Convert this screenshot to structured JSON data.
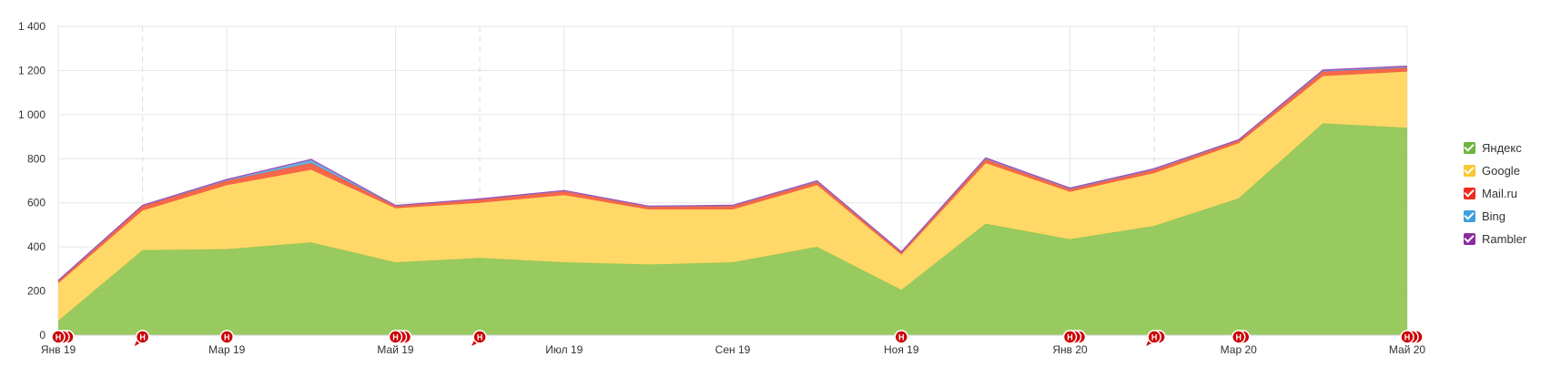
{
  "chart_data": {
    "type": "area",
    "stacked": true,
    "x": [
      "Янв 19",
      "Фев 19",
      "Мар 19",
      "Апр 19",
      "Май 19",
      "Июн 19",
      "Июл 19",
      "Авг 19",
      "Сен 19",
      "Окт 19",
      "Ноя 19",
      "Дек 19",
      "Янв 20",
      "Фев 20",
      "Мар 20",
      "Апр 20",
      "Май 20"
    ],
    "x_tick_labels": [
      "Янв 19",
      "Мар 19",
      "Май 19",
      "Июл 19",
      "Сен 19",
      "Ноя 19",
      "Янв 20",
      "Мар 20",
      "Май 20"
    ],
    "ylim": [
      0,
      1400
    ],
    "y_ticks": [
      0,
      200,
      400,
      600,
      800,
      1000,
      1200,
      1400
    ],
    "y_tick_labels": [
      "0",
      "200",
      "400",
      "600",
      "800",
      "1 000",
      "1 200",
      "1 400"
    ],
    "grid": true,
    "legend_position": "right",
    "series": [
      {
        "name": "Яндекс",
        "color": "#8fc653",
        "legend_color": "#6eb43f",
        "values": [
          65,
          385,
          390,
          420,
          330,
          350,
          330,
          320,
          330,
          400,
          205,
          505,
          435,
          495,
          620,
          960,
          940
        ]
      },
      {
        "name": "Google",
        "color": "#ffd660",
        "legend_color": "#f9c733",
        "values": [
          170,
          180,
          290,
          330,
          245,
          250,
          305,
          250,
          240,
          280,
          160,
          275,
          215,
          240,
          250,
          215,
          255
        ]
      },
      {
        "name": "Mail.ru",
        "color": "#f55a3c",
        "legend_color": "#ef2b1f",
        "values": [
          10,
          20,
          20,
          30,
          10,
          15,
          18,
          12,
          15,
          15,
          10,
          18,
          12,
          15,
          12,
          20,
          18
        ]
      },
      {
        "name": "Bing",
        "color": "#5fa9dc",
        "legend_color": "#3d9fdd",
        "values": [
          2,
          3,
          5,
          15,
          2,
          2,
          2,
          2,
          3,
          3,
          2,
          3,
          3,
          3,
          3,
          4,
          4
        ]
      },
      {
        "name": "Rambler",
        "color": "#a24fb5",
        "legend_color": "#8a2d9f",
        "values": [
          1,
          1,
          1,
          2,
          1,
          1,
          1,
          1,
          1,
          2,
          1,
          3,
          2,
          2,
          1,
          3,
          3
        ]
      }
    ],
    "annotations": [
      {
        "label": "Н",
        "x": "Янв 19",
        "stack": 3
      },
      {
        "label": "Н",
        "x": "Фев 19",
        "stack": 1,
        "pointer": true
      },
      {
        "label": "Н",
        "x": "Мар 19",
        "stack": 1
      },
      {
        "label": "Н",
        "x": "Май 19",
        "stack": 3
      },
      {
        "label": "Н",
        "x": "Июн 19",
        "stack": 1,
        "pointer": true
      },
      {
        "label": "Н",
        "x": "Ноя 19",
        "stack": 1
      },
      {
        "label": "Н",
        "x": "Янв 20",
        "stack": 3
      },
      {
        "label": "Н",
        "x": "Фев 20",
        "stack": 2,
        "pointer": true
      },
      {
        "label": "Н",
        "x": "Мар 20",
        "stack": 2
      },
      {
        "label": "Н",
        "x": "Май 20",
        "stack": 3
      }
    ],
    "colors": {
      "marker": "#cc0000",
      "grid": "#e6e6e6",
      "dashed_grid": "#dddddd",
      "baseline": "#cfcfcf"
    }
  }
}
